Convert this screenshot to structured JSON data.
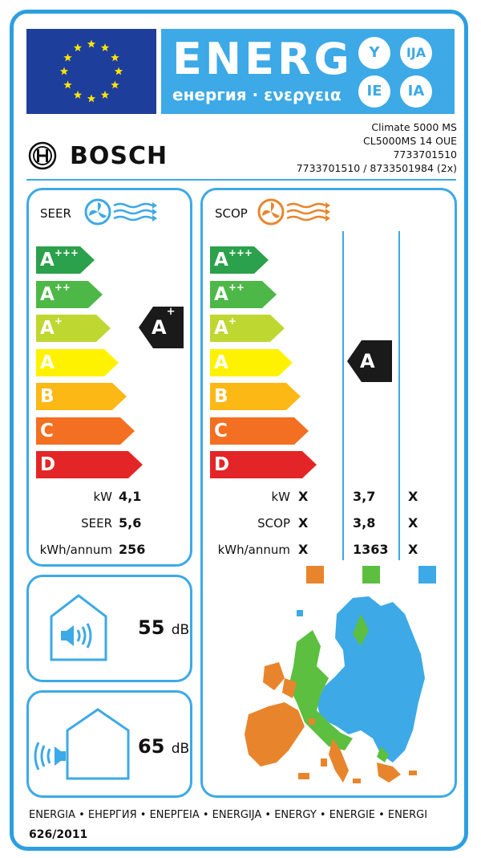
{
  "header": {
    "energy_title": "ENERG",
    "energy_subtitle": "енергия · ενεργεια",
    "language_codes": [
      "Y",
      "IJA",
      "IE",
      "IA"
    ]
  },
  "supplier": {
    "brand": "BOSCH",
    "model_lines": [
      "Climate 5000 MS",
      "CL5000MS 14 OUE",
      "7733701510",
      "7733701510 / 8733501984 (2x)"
    ]
  },
  "cooling": {
    "label": "SEER",
    "classes": [
      "A+++",
      "A++",
      "A+",
      "A",
      "B",
      "C",
      "D"
    ],
    "rated_class": "A+",
    "values": [
      {
        "label": "kW",
        "value": "4,1"
      },
      {
        "label": "SEER",
        "value": "5,6"
      },
      {
        "label": "kWh/annum",
        "value": "256"
      }
    ]
  },
  "heating": {
    "label": "SCOP",
    "classes": [
      "A+++",
      "A++",
      "A+",
      "A",
      "B",
      "C",
      "D"
    ],
    "rated_class": "A",
    "rows": [
      {
        "label": "kW",
        "warmer": "X",
        "average": "3,7",
        "colder": "X"
      },
      {
        "label": "SCOP",
        "warmer": "X",
        "average": "3,8",
        "colder": "X"
      },
      {
        "label": "kWh/annum",
        "warmer": "X",
        "average": "1363",
        "colder": "X"
      }
    ],
    "zone_colors": {
      "warmer": "#e8852c",
      "average": "#5cbf3f",
      "colder": "#3da9e6"
    }
  },
  "noise": {
    "indoor": {
      "value": "55",
      "unit": "dB"
    },
    "outdoor": {
      "value": "65",
      "unit": "dB"
    }
  },
  "footer": {
    "languages": "ENERGIA • ЕНЕРГИЯ • ΕΝΕΡΓΕΙΑ • ENERGIJA • ENERGY • ENERGIE • ENERGI",
    "regulation": "626/2011"
  },
  "colors": {
    "frame": "#2d9fe0",
    "eu_blue": "#1e3e9c",
    "cooling_icon": "#3da9e6",
    "heating_icon": "#e8852c",
    "class_colors": [
      "#2aa14a",
      "#4db848",
      "#bfd731",
      "#fff200",
      "#fcb814",
      "#f36f21",
      "#e42527"
    ],
    "indicator": "#1a1a1a"
  }
}
